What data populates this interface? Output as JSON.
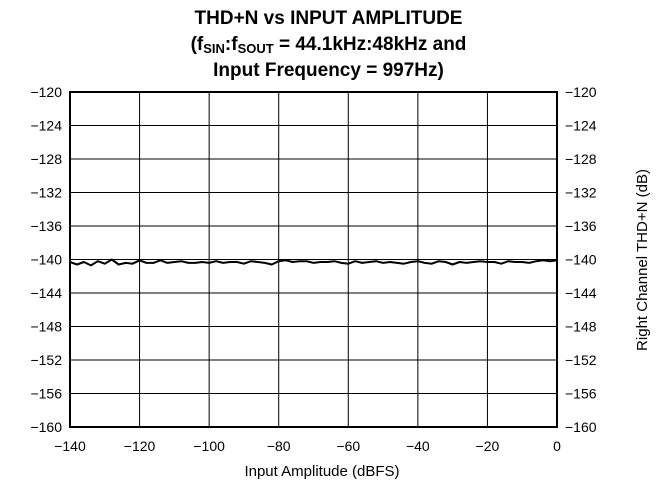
{
  "chart_data": {
    "type": "line",
    "title": "THD+N vs INPUT AMPLITUDE",
    "subtitle_prefix": "(f",
    "subtitle_sub1": "SIN",
    "subtitle_colon": ":f",
    "subtitle_sub2": "SOUT",
    "subtitle_rest": " = 44.1kHz:48kHz and",
    "subtitle_line2": "Input Frequency = 997Hz)",
    "xlabel": "Input Amplitude (dBFS)",
    "ylabel_right": "Right Channel THD+N (dB)",
    "xlim": [
      -140,
      0
    ],
    "ylim": [
      -160,
      -120
    ],
    "x_ticks": [
      -140,
      -120,
      -100,
      -80,
      -60,
      -40,
      -20,
      0
    ],
    "x_tick_labels": [
      "−140",
      "−120",
      "−100",
      "−80",
      "−60",
      "−40",
      "−20",
      "0"
    ],
    "y_ticks": [
      -120,
      -124,
      -128,
      -132,
      -136,
      -140,
      -144,
      -148,
      -152,
      -156,
      -160
    ],
    "y_tick_labels": [
      "−120",
      "−124",
      "−128",
      "−132",
      "−136",
      "−140",
      "−144",
      "−148",
      "−152",
      "−156",
      "−160"
    ],
    "grid": true,
    "series": [
      {
        "color": "#000000",
        "x": [
          -140,
          -138,
          -136,
          -134,
          -132,
          -130,
          -128,
          -126,
          -124,
          -122,
          -120,
          -118,
          -116,
          -114,
          -112,
          -110,
          -108,
          -106,
          -104,
          -102,
          -100,
          -98,
          -96,
          -94,
          -92,
          -90,
          -88,
          -86,
          -84,
          -82,
          -80,
          -78,
          -76,
          -74,
          -72,
          -70,
          -68,
          -66,
          -64,
          -62,
          -60,
          -58,
          -56,
          -54,
          -52,
          -50,
          -48,
          -46,
          -44,
          -42,
          -40,
          -38,
          -36,
          -34,
          -32,
          -30,
          -28,
          -26,
          -24,
          -22,
          -20,
          -18,
          -16,
          -14,
          -12,
          -10,
          -8,
          -6,
          -4,
          -2,
          0
        ],
        "y": [
          -140.3,
          -140.6,
          -140.3,
          -140.7,
          -140.2,
          -140.5,
          -140.0,
          -140.6,
          -140.4,
          -140.5,
          -140.1,
          -140.4,
          -140.4,
          -140.1,
          -140.4,
          -140.3,
          -140.2,
          -140.4,
          -140.4,
          -140.3,
          -140.4,
          -140.2,
          -140.4,
          -140.3,
          -140.3,
          -140.5,
          -140.2,
          -140.3,
          -140.4,
          -140.6,
          -140.2,
          -140.1,
          -140.3,
          -140.2,
          -140.2,
          -140.4,
          -140.3,
          -140.3,
          -140.2,
          -140.4,
          -140.5,
          -140.2,
          -140.4,
          -140.3,
          -140.2,
          -140.4,
          -140.3,
          -140.4,
          -140.5,
          -140.3,
          -140.2,
          -140.4,
          -140.5,
          -140.2,
          -140.3,
          -140.6,
          -140.3,
          -140.4,
          -140.3,
          -140.2,
          -140.3,
          -140.3,
          -140.5,
          -140.2,
          -140.3,
          -140.3,
          -140.4,
          -140.2,
          -140.1,
          -140.2,
          -140.1
        ]
      }
    ]
  }
}
